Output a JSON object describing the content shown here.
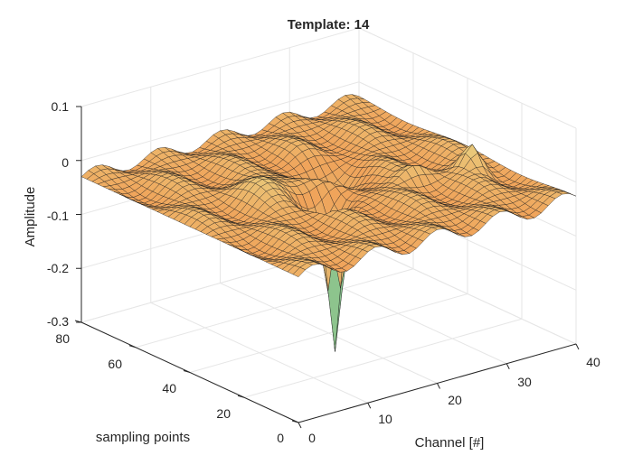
{
  "chart_data": {
    "type": "surface",
    "title": "Template: 14",
    "xlabel": "Channel [#]",
    "ylabel": "sampling points",
    "zlabel": "Amplitude",
    "xlim": [
      0,
      40
    ],
    "ylim": [
      0,
      80
    ],
    "zlim": [
      -0.3,
      0.1
    ],
    "xticks": [
      "0",
      "10",
      "20",
      "30",
      "40"
    ],
    "yticks": [
      "0",
      "20",
      "40",
      "60",
      "80"
    ],
    "zticks": [
      "-0.3",
      "-0.2",
      "-0.1",
      "0",
      "0.1"
    ],
    "grid": true,
    "colormap": [
      "#2a9d8f",
      "#57b894",
      "#a6c98a",
      "#e2b66e",
      "#f0a35a",
      "#e8cf80"
    ],
    "surface_features": {
      "baseline": -0.03,
      "trough": {
        "channel": 17,
        "sample": 30,
        "amplitude": -0.3
      },
      "ridge": {
        "channel": 24,
        "sample": 50,
        "amplitude": -0.09
      },
      "peak": {
        "channel": 36,
        "sample": 28,
        "amplitude": 0.0
      }
    }
  }
}
